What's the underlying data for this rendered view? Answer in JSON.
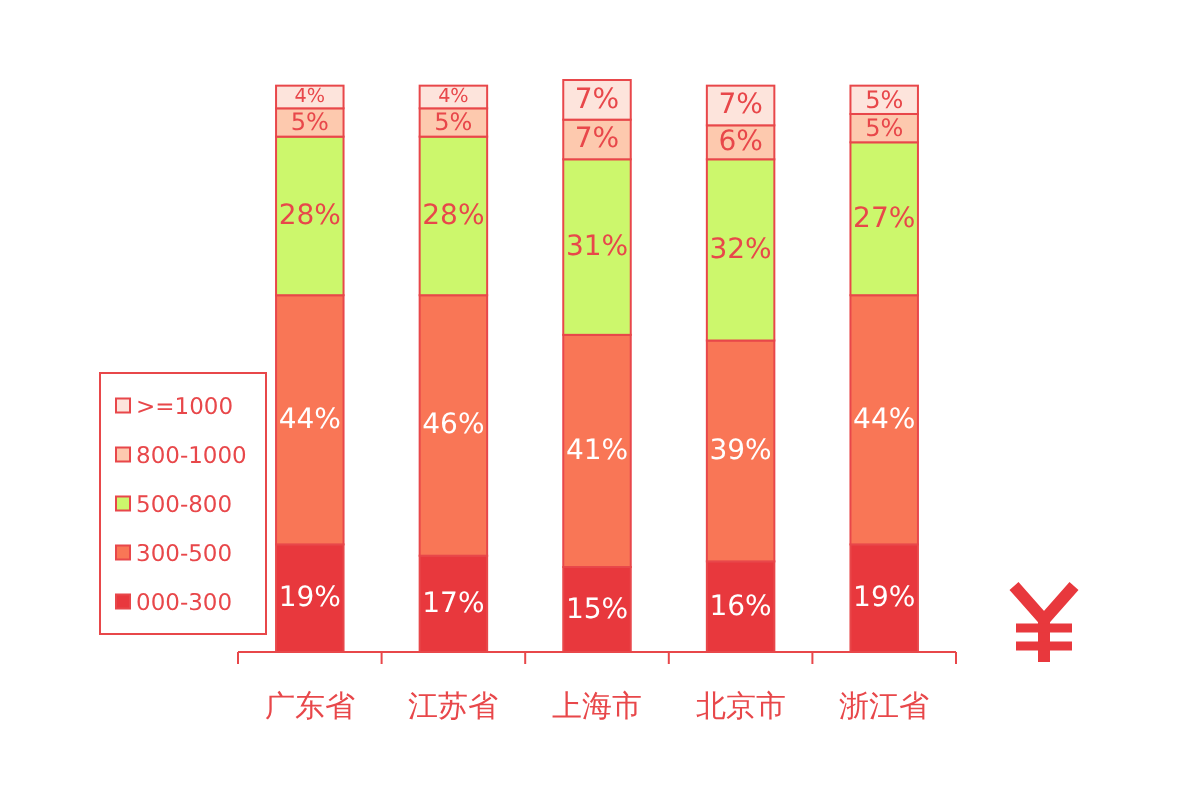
{
  "chart_data": {
    "type": "bar",
    "stacked": true,
    "legend": "bottom left",
    "categories": [
      "广东省",
      "江苏省",
      "上海市",
      "北京市",
      "浙江省"
    ],
    "series": [
      {
        "name": "000-300",
        "color": "#e8383d",
        "values": [
          19,
          17,
          15,
          16,
          19
        ],
        "value_labels": [
          "19%",
          "17%",
          "15%",
          "16%",
          "19%"
        ]
      },
      {
        "name": "300-500",
        "color": "#f97656",
        "values": [
          44,
          46,
          41,
          39,
          44
        ],
        "value_labels": [
          "44%",
          "46%",
          "41%",
          "39%",
          "44%"
        ]
      },
      {
        "name": "500-800",
        "color": "#ccf76c",
        "values": [
          28,
          28,
          31,
          32,
          27
        ],
        "value_labels": [
          "28%",
          "28%",
          "31%",
          "32%",
          "27%"
        ]
      },
      {
        "name": "800-1000",
        "color": "#fdc9ae",
        "values": [
          5,
          5,
          7,
          6,
          5
        ],
        "value_labels": [
          "5%",
          "5%",
          "7%",
          "6%",
          "5%"
        ]
      },
      {
        "name": ">=1000",
        "color": "#fde4dc",
        "values": [
          4,
          4,
          7,
          7,
          5
        ],
        "value_labels": [
          "4%",
          "4%",
          "7%",
          "7%",
          "5%"
        ]
      }
    ]
  }
}
